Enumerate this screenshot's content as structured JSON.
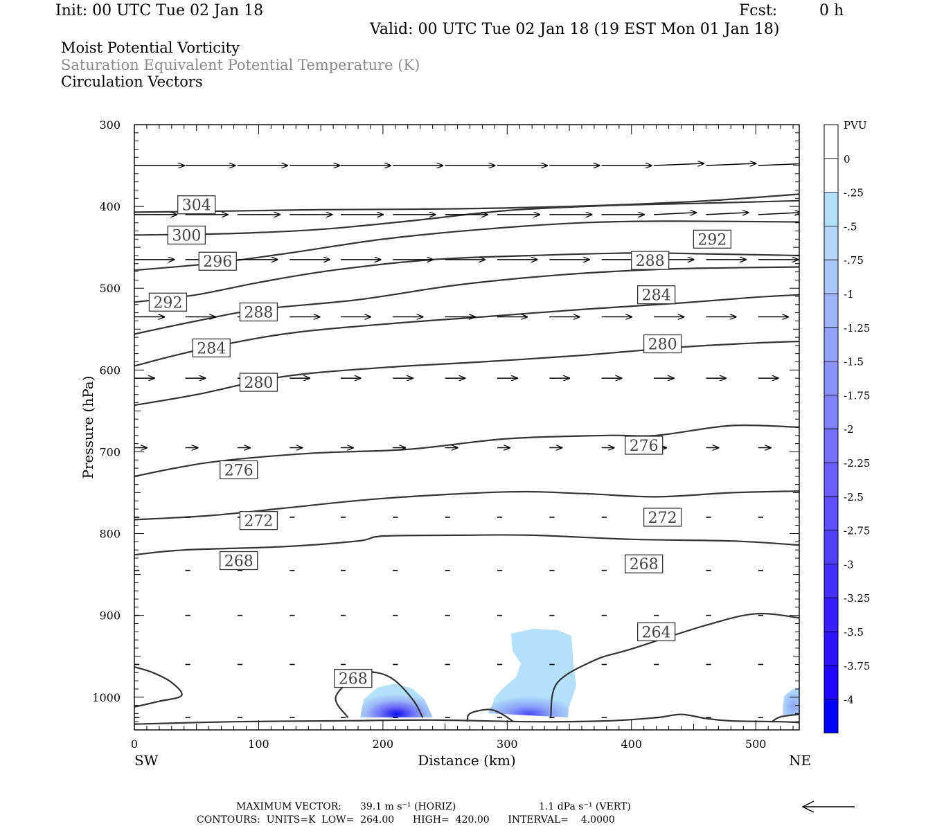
{
  "header": {
    "init": "Init: 00 UTC Tue 02 Jan 18",
    "fcst_label": "Fcst:",
    "fcst_value": "0 h",
    "valid": "Valid: 00 UTC Tue 02 Jan 18 (19 EST Mon 01 Jan 18)"
  },
  "titles": {
    "line1": "Moist Potential Vorticity",
    "line2": "Saturation Equivalent Potential Temperature (K)",
    "line3": "Circulation Vectors"
  },
  "colors": {
    "contour": "#333333",
    "gray_text": "#8a8a8a",
    "shade_light": "#b3e0fa",
    "shade_dark": "#0000ff"
  },
  "colorbar": {
    "unit": "PVU",
    "labels": [
      "0",
      "-.25",
      "-.5",
      "-.75",
      "-1",
      "-1.25",
      "-1.5",
      "-1.75",
      "-2",
      "-2.25",
      "-2.5",
      "-2.75",
      "-3",
      "-3.25",
      "-3.5",
      "-3.75",
      "-4"
    ],
    "colors": [
      "#ffffff",
      "#ffffff",
      "#b3e0fa",
      "#b5d5fb",
      "#aac6fb",
      "#9fb5fb",
      "#94a3fb",
      "#8a93fb",
      "#7f82fb",
      "#7371fb",
      "#6860fc",
      "#5c50fc",
      "#5040fd",
      "#4430fd",
      "#3820fe",
      "#2c14fe",
      "#1e08ff",
      "#0000ff"
    ]
  },
  "footer": {
    "max_vector_label": "MAXIMUM VECTOR:",
    "max_horiz": "39.1 m s⁻¹ (HORIZ)",
    "max_vert": "1.1 dPa s⁻¹ (VERT)",
    "contours": "CONTOURS:  UNITS=K  LOW=  264.00      HIGH=  420.00      INTERVAL=    4.0000"
  },
  "chart_data": {
    "type": "contour",
    "xlabel": "Distance (km)",
    "ylabel": "Pressure (hPa)",
    "xlim": [
      0,
      535
    ],
    "ylim": [
      1040,
      300
    ],
    "x_ticks": [
      0,
      100,
      200,
      300,
      400,
      500
    ],
    "y_ticks": [
      300,
      400,
      500,
      600,
      700,
      800,
      900,
      1000
    ],
    "x_end_labels": {
      "left": "SW",
      "right": "NE"
    },
    "contour_interval": 4,
    "contours": [
      {
        "label": "304",
        "points": [
          [
            0,
            407
          ],
          [
            60,
            406
          ],
          [
            150,
            404
          ],
          [
            250,
            403
          ],
          [
            350,
            400
          ],
          [
            450,
            394
          ],
          [
            535,
            385
          ]
        ]
      },
      {
        "label": "300",
        "points": [
          [
            0,
            435
          ],
          [
            80,
            433
          ],
          [
            150,
            428
          ],
          [
            220,
            418
          ],
          [
            300,
            405
          ],
          [
            380,
            399
          ],
          [
            460,
            396
          ],
          [
            535,
            393
          ]
        ]
      },
      {
        "label": "296",
        "points": [
          [
            0,
            478
          ],
          [
            60,
            470
          ],
          [
            120,
            458
          ],
          [
            200,
            440
          ],
          [
            280,
            428
          ],
          [
            360,
            420
          ],
          [
            430,
            418
          ],
          [
            535,
            419
          ]
        ]
      },
      {
        "label": "292",
        "points": [
          [
            0,
            517
          ],
          [
            50,
            508
          ],
          [
            100,
            493
          ],
          [
            160,
            478
          ],
          [
            240,
            465
          ],
          [
            320,
            460
          ],
          [
            400,
            457
          ],
          [
            460,
            458
          ],
          [
            535,
            460
          ]
        ]
      },
      {
        "label": "288",
        "points": [
          [
            0,
            556
          ],
          [
            50,
            540
          ],
          [
            100,
            526
          ],
          [
            180,
            514
          ],
          [
            260,
            496
          ],
          [
            340,
            484
          ],
          [
            420,
            477
          ],
          [
            480,
            475
          ],
          [
            535,
            474
          ]
        ]
      },
      {
        "label": "284",
        "points": [
          [
            0,
            595
          ],
          [
            50,
            576
          ],
          [
            120,
            556
          ],
          [
            200,
            544
          ],
          [
            280,
            535
          ],
          [
            360,
            526
          ],
          [
            440,
            518
          ],
          [
            500,
            511
          ],
          [
            535,
            508
          ]
        ]
      },
      {
        "label": "280",
        "points": [
          [
            0,
            643
          ],
          [
            50,
            630
          ],
          [
            120,
            608
          ],
          [
            200,
            597
          ],
          [
            280,
            590
          ],
          [
            360,
            582
          ],
          [
            440,
            572
          ],
          [
            500,
            567
          ],
          [
            535,
            565
          ]
        ]
      },
      {
        "label": "276",
        "points": [
          [
            0,
            730
          ],
          [
            60,
            713
          ],
          [
            140,
            702
          ],
          [
            220,
            697
          ],
          [
            300,
            684
          ],
          [
            380,
            680
          ],
          [
            420,
            680
          ],
          [
            480,
            668
          ],
          [
            535,
            670
          ]
        ]
      },
      {
        "label": "272",
        "points": [
          [
            0,
            783
          ],
          [
            60,
            778
          ],
          [
            120,
            769
          ],
          [
            200,
            757
          ],
          [
            300,
            749
          ],
          [
            360,
            751
          ],
          [
            420,
            755
          ],
          [
            480,
            750
          ],
          [
            535,
            748
          ]
        ]
      },
      {
        "label": "268",
        "points": [
          [
            0,
            826
          ],
          [
            40,
            820
          ],
          [
            120,
            816
          ],
          [
            180,
            809
          ],
          [
            200,
            803
          ],
          [
            260,
            802
          ],
          [
            320,
            802
          ],
          [
            400,
            807
          ],
          [
            480,
            809
          ],
          [
            535,
            814
          ]
        ]
      },
      {
        "label": "264",
        "points": [
          [
            335,
            1025
          ],
          [
            340,
            983
          ],
          [
            370,
            955
          ],
          [
            400,
            941
          ],
          [
            460,
            912
          ],
          [
            500,
            898
          ],
          [
            535,
            903
          ]
        ]
      },
      {
        "label": "268",
        "points": [
          [
            172,
            1025
          ],
          [
            162,
            1000
          ],
          [
            180,
            973
          ],
          [
            195,
            970
          ],
          [
            210,
            980
          ],
          [
            225,
            1005
          ],
          [
            232,
            1025
          ]
        ]
      },
      {
        "label": "",
        "points": [
          [
            0,
            963
          ],
          [
            15,
            970
          ],
          [
            30,
            982
          ],
          [
            38,
            998
          ],
          [
            20,
            1005
          ],
          [
            0,
            1012
          ]
        ]
      },
      {
        "label": "",
        "points": [
          [
            268,
            1030
          ],
          [
            270,
            1020
          ],
          [
            285,
            1015
          ],
          [
            295,
            1020
          ],
          [
            305,
            1030
          ]
        ]
      },
      {
        "label": "",
        "points": [
          [
            513,
            1030
          ],
          [
            520,
            1024
          ],
          [
            535,
            1021
          ]
        ]
      },
      {
        "label": "",
        "points": [
          [
            0,
            1033
          ],
          [
            80,
            1030
          ],
          [
            160,
            1029
          ],
          [
            240,
            1028
          ],
          [
            320,
            1030
          ],
          [
            380,
            1029
          ],
          [
            420,
            1025
          ],
          [
            440,
            1021
          ],
          [
            460,
            1026
          ],
          [
            480,
            1029
          ],
          [
            520,
            1030
          ],
          [
            535,
            1031
          ]
        ]
      }
    ],
    "pv_shading": [
      {
        "x_center": 210,
        "p_center": 1025,
        "min_pvu": -4.0
      },
      {
        "x_center": 320,
        "p_center": 1025,
        "min_pvu": -3.0
      },
      {
        "x_center": 325,
        "p_center": 960,
        "min_pvu": -0.25
      },
      {
        "x_center": 530,
        "p_center": 1015,
        "min_pvu": -0.75
      }
    ],
    "vector_levels": [
      {
        "p": 350,
        "u": 1.0
      },
      {
        "p": 410,
        "u": 0.85
      },
      {
        "p": 465,
        "u": 0.8
      },
      {
        "p": 535,
        "u": 0.6
      },
      {
        "p": 610,
        "u": 0.4
      },
      {
        "p": 695,
        "u": 0.25
      },
      {
        "p": 780,
        "u": 0.1
      },
      {
        "p": 845,
        "u": 0.1
      },
      {
        "p": 900,
        "u": 0.1
      },
      {
        "p": 960,
        "u": 0.1
      },
      {
        "p": 1025,
        "u": 0.1
      }
    ]
  }
}
